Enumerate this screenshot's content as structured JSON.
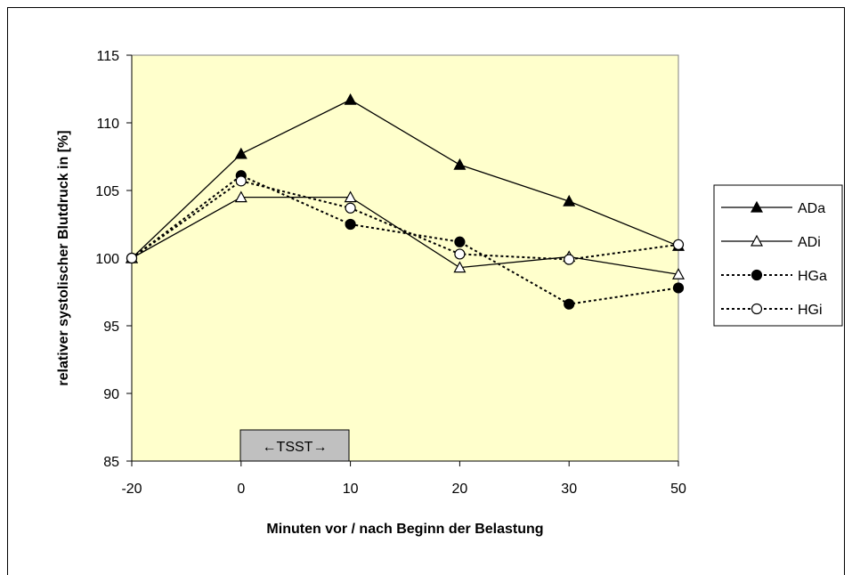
{
  "chart_data": {
    "type": "line",
    "title": "",
    "xlabel": "Minuten vor / nach Beginn der Belastung",
    "ylabel": "relativer systolischer Blutdruck in [%]",
    "x": [
      -20,
      0,
      10,
      20,
      30,
      50
    ],
    "x_ticks": [
      "-20",
      "0",
      "10",
      "20",
      "30",
      "50"
    ],
    "ylim": [
      85,
      115
    ],
    "y_ticks": [
      "85",
      "90",
      "95",
      "100",
      "105",
      "110",
      "115"
    ],
    "grid": false,
    "legend_position": "right",
    "annotation": "←TSST→",
    "series": [
      {
        "name": "ADa",
        "marker": "filled-triangle",
        "line": "solid",
        "values": [
          100,
          107.7,
          111.7,
          106.9,
          104.2,
          100.9
        ]
      },
      {
        "name": "ADi",
        "marker": "open-triangle",
        "line": "solid",
        "values": [
          100,
          104.5,
          104.5,
          99.3,
          100.1,
          98.8
        ]
      },
      {
        "name": "HGa",
        "marker": "filled-circle",
        "line": "dotted",
        "values": [
          100,
          106.1,
          102.5,
          101.2,
          96.6,
          97.8
        ]
      },
      {
        "name": "HGi",
        "marker": "open-circle",
        "line": "dotted",
        "values": [
          100,
          105.7,
          103.7,
          100.3,
          99.9,
          101.0
        ]
      }
    ],
    "colors": {
      "plot_background": "#ffffcc",
      "annotation_background": "#c0c0c0",
      "line": "#000000"
    }
  }
}
